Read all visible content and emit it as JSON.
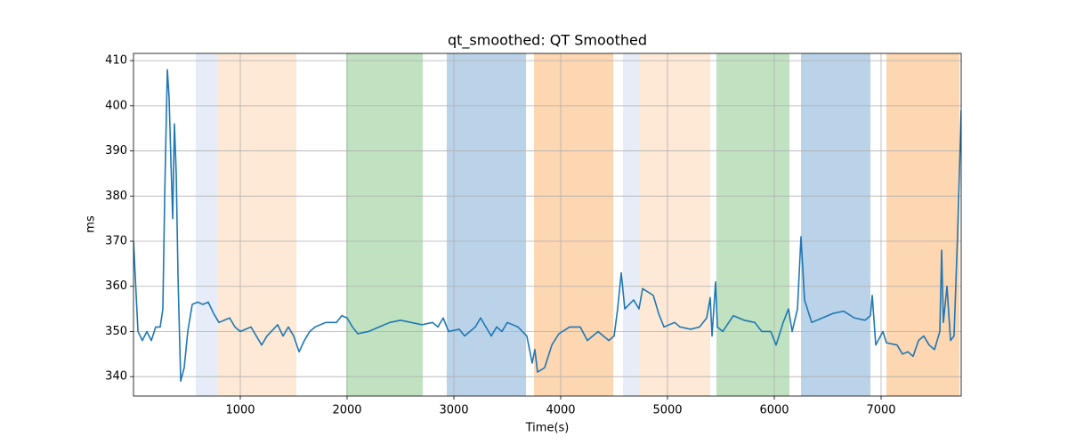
{
  "chart_data": {
    "type": "line",
    "title": "qt_smoothed: QT Smoothed",
    "xlabel": "Time(s)",
    "ylabel": "ms",
    "xlim": [
      0,
      7750
    ],
    "ylim": [
      335.7,
      411.6
    ],
    "xticks": [
      1000,
      2000,
      3000,
      4000,
      5000,
      6000,
      7000
    ],
    "yticks": [
      340,
      350,
      360,
      370,
      380,
      390,
      400,
      410
    ],
    "grid": true,
    "spans": [
      {
        "start": 583,
        "end": 792,
        "color": "#e6edf8"
      },
      {
        "start": 792,
        "end": 1525,
        "color": "#fde9d5"
      },
      {
        "start": 1992,
        "end": 2708,
        "color": "#c0e2c0"
      },
      {
        "start": 2933,
        "end": 3675,
        "color": "#bad3e8"
      },
      {
        "start": 3750,
        "end": 4492,
        "color": "#fdd6b2"
      },
      {
        "start": 4583,
        "end": 4733,
        "color": "#e6edf8"
      },
      {
        "start": 4733,
        "end": 5400,
        "color": "#fde9d5"
      },
      {
        "start": 5458,
        "end": 6142,
        "color": "#c0e2c0"
      },
      {
        "start": 6250,
        "end": 6900,
        "color": "#bad3e8"
      },
      {
        "start": 7050,
        "end": 7733,
        "color": "#fdd6b2"
      }
    ],
    "series": [
      {
        "color": "#1f77b4",
        "x": [
          0,
          42,
          83,
          125,
          167,
          208,
          250,
          275,
          292,
          317,
          333,
          350,
          367,
          383,
          400,
          417,
          442,
          475,
          508,
          550,
          600,
          650,
          700,
          750,
          800,
          900,
          950,
          1000,
          1100,
          1150,
          1200,
          1250,
          1350,
          1400,
          1450,
          1500,
          1550,
          1600,
          1650,
          1700,
          1800,
          1900,
          1950,
          2000,
          2050,
          2100,
          2200,
          2300,
          2400,
          2500,
          2600,
          2700,
          2800,
          2850,
          2900,
          2950,
          3050,
          3100,
          3200,
          3250,
          3300,
          3350,
          3400,
          3450,
          3500,
          3600,
          3683,
          3733,
          3758,
          3783,
          3850,
          3917,
          3983,
          4083,
          4183,
          4250,
          4350,
          4450,
          4500,
          4533,
          4567,
          4600,
          4683,
          4733,
          4767,
          4867,
          4917,
          4967,
          5067,
          5117,
          5217,
          5300,
          5367,
          5400,
          5417,
          5450,
          5467,
          5517,
          5617,
          5717,
          5817,
          5883,
          5967,
          6017,
          6083,
          6133,
          6167,
          6217,
          6250,
          6283,
          6350,
          6450,
          6550,
          6650,
          6750,
          6850,
          6900,
          6917,
          6950,
          7017,
          7050,
          7150,
          7200,
          7250,
          7300,
          7350,
          7400,
          7450,
          7500,
          7550,
          7567,
          7583,
          7617,
          7650,
          7683,
          7717,
          7750
        ],
        "values": [
          370,
          350,
          348,
          350,
          348,
          351,
          351,
          355,
          380,
          408,
          402,
          388,
          375,
          396,
          385,
          362,
          339,
          342,
          350,
          356,
          356.5,
          356,
          356.5,
          354,
          352,
          353,
          351,
          350,
          351,
          349,
          347,
          349,
          351.5,
          349,
          351,
          349,
          345.5,
          348,
          350,
          351,
          352,
          352,
          353.5,
          353,
          351,
          349.5,
          350,
          351,
          352,
          352.5,
          352,
          351.5,
          352,
          351,
          353,
          350,
          350.5,
          349,
          351,
          353,
          351,
          349,
          351,
          350,
          352,
          351,
          349,
          343,
          346,
          341,
          342,
          347,
          349.5,
          351,
          351,
          348,
          350,
          348,
          349,
          355,
          363,
          355,
          357,
          355,
          359.5,
          358,
          354,
          351,
          352,
          351,
          350.5,
          351,
          353,
          357.5,
          349,
          361,
          351,
          350,
          353.5,
          352.5,
          352,
          350,
          350,
          347,
          352,
          355,
          350,
          355,
          371,
          357,
          352,
          353,
          354,
          354.5,
          353,
          352.5,
          353.5,
          358,
          347,
          350,
          347.5,
          347,
          345,
          345.5,
          344.5,
          348,
          349,
          347,
          346,
          350,
          368,
          352,
          360,
          348,
          349,
          372,
          399
        ]
      }
    ]
  }
}
